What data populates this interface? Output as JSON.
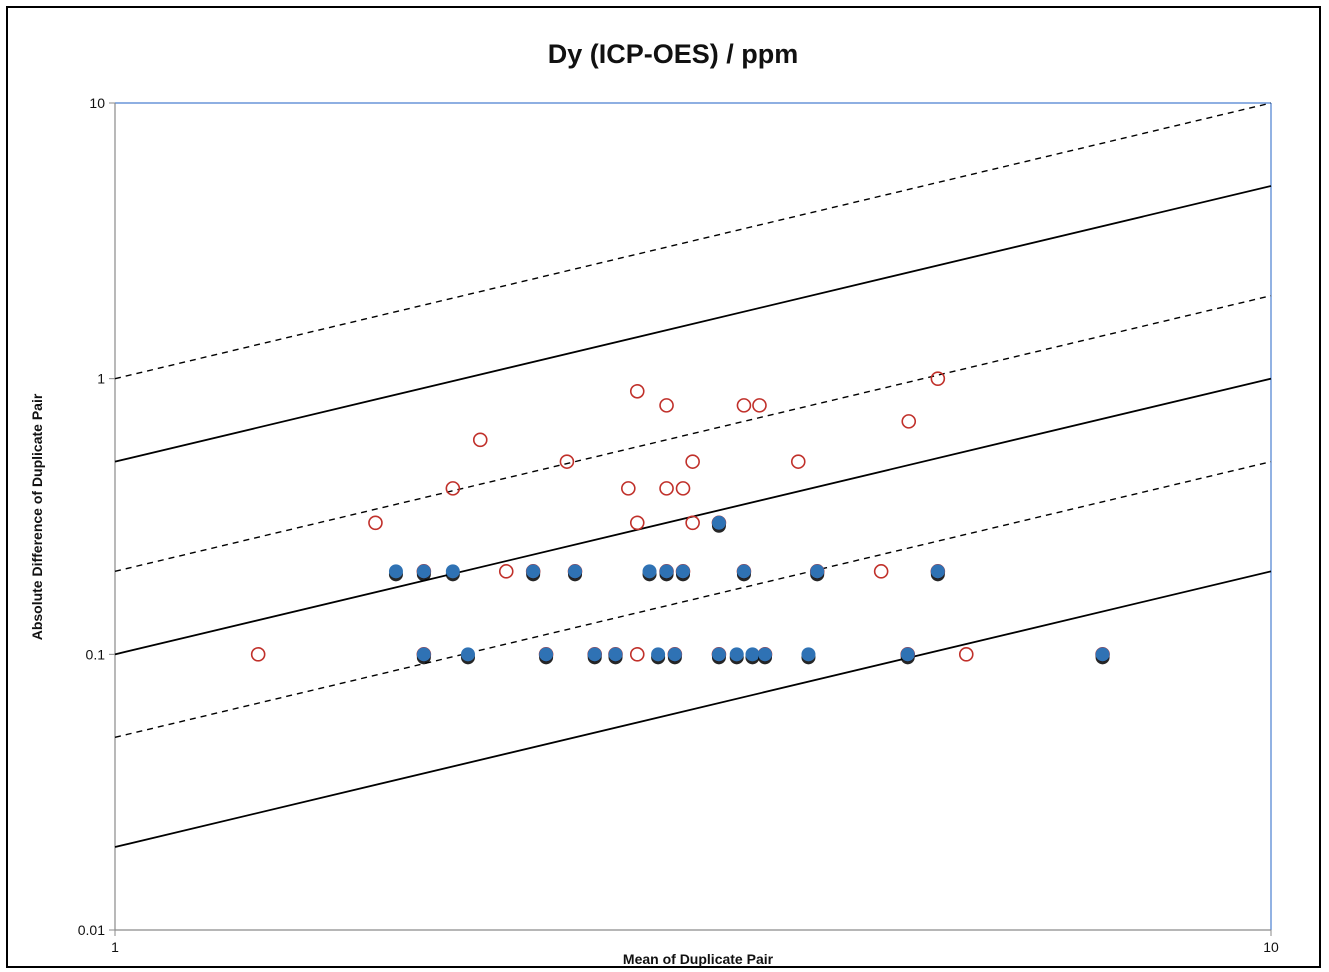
{
  "chart_data": {
    "type": "scatter",
    "title": "Dy (ICP-OES) / ppm",
    "xlabel": "Mean of Duplicate Pair",
    "ylabel": "Absolute Difference of Duplicate Pair",
    "x_scale": "log",
    "y_scale": "log",
    "xlim": [
      1,
      10
    ],
    "ylim": [
      0.01,
      10
    ],
    "x_ticks": [
      "1",
      "10"
    ],
    "y_ticks": [
      "0.01",
      "0.1",
      "1",
      "10"
    ],
    "grid": false,
    "legend": "none",
    "colors": {
      "filled_marker": "#2f72b4",
      "open_marker": "#c0302a",
      "plot_border": "#4a7fd0",
      "reference_line": "#000000"
    },
    "reference_lines": [
      {
        "style": "solid",
        "ratio": 0.5
      },
      {
        "style": "solid",
        "ratio": 0.1
      },
      {
        "style": "solid",
        "ratio": 0.02
      },
      {
        "style": "dashed",
        "ratio": 1.0
      },
      {
        "style": "dashed",
        "ratio": 0.2
      },
      {
        "style": "dashed",
        "ratio": 0.05
      }
    ],
    "series": [
      {
        "marker": "open-circle",
        "points": [
          [
            1.33,
            0.1
          ],
          [
            1.68,
            0.3
          ],
          [
            1.96,
            0.4
          ],
          [
            2.07,
            0.6
          ],
          [
            2.18,
            0.2
          ],
          [
            2.46,
            0.5
          ],
          [
            2.71,
            0.1
          ],
          [
            2.78,
            0.4
          ],
          [
            2.83,
            0.9
          ],
          [
            2.83,
            0.3
          ],
          [
            3.0,
            0.8
          ],
          [
            3.0,
            0.4
          ],
          [
            3.1,
            0.4
          ],
          [
            3.16,
            0.5
          ],
          [
            3.16,
            0.3
          ],
          [
            3.33,
            0.3
          ],
          [
            3.5,
            0.8
          ],
          [
            3.61,
            0.8
          ],
          [
            3.9,
            0.5
          ],
          [
            4.6,
            0.2
          ],
          [
            4.86,
            0.7
          ],
          [
            5.15,
            1.0
          ],
          [
            5.45,
            0.1
          ],
          [
            1.85,
            0.2
          ],
          [
            1.85,
            0.1
          ],
          [
            2.3,
            0.2
          ],
          [
            2.36,
            0.1
          ],
          [
            2.5,
            0.2
          ],
          [
            2.6,
            0.1
          ],
          [
            2.83,
            0.1
          ],
          [
            3.0,
            0.2
          ],
          [
            3.05,
            0.1
          ],
          [
            3.1,
            0.2
          ],
          [
            3.33,
            0.1
          ],
          [
            3.5,
            0.2
          ],
          [
            3.65,
            0.1
          ],
          [
            4.05,
            0.2
          ],
          [
            4.85,
            0.1
          ],
          [
            5.15,
            0.2
          ],
          [
            7.15,
            0.1
          ]
        ]
      },
      {
        "marker": "filled-circle",
        "points": [
          [
            1.75,
            0.2
          ],
          [
            1.85,
            0.2
          ],
          [
            1.96,
            0.2
          ],
          [
            2.3,
            0.2
          ],
          [
            2.5,
            0.2
          ],
          [
            2.9,
            0.2
          ],
          [
            3.0,
            0.2
          ],
          [
            3.1,
            0.2
          ],
          [
            3.5,
            0.2
          ],
          [
            4.05,
            0.2
          ],
          [
            5.15,
            0.2
          ],
          [
            3.33,
            0.3
          ],
          [
            1.85,
            0.1
          ],
          [
            2.02,
            0.1
          ],
          [
            2.36,
            0.1
          ],
          [
            2.6,
            0.1
          ],
          [
            2.71,
            0.1
          ],
          [
            2.95,
            0.1
          ],
          [
            3.05,
            0.1
          ],
          [
            3.33,
            0.1
          ],
          [
            3.45,
            0.1
          ],
          [
            3.56,
            0.1
          ],
          [
            3.65,
            0.1
          ],
          [
            3.98,
            0.1
          ],
          [
            4.85,
            0.1
          ],
          [
            7.15,
            0.1
          ]
        ]
      }
    ]
  }
}
